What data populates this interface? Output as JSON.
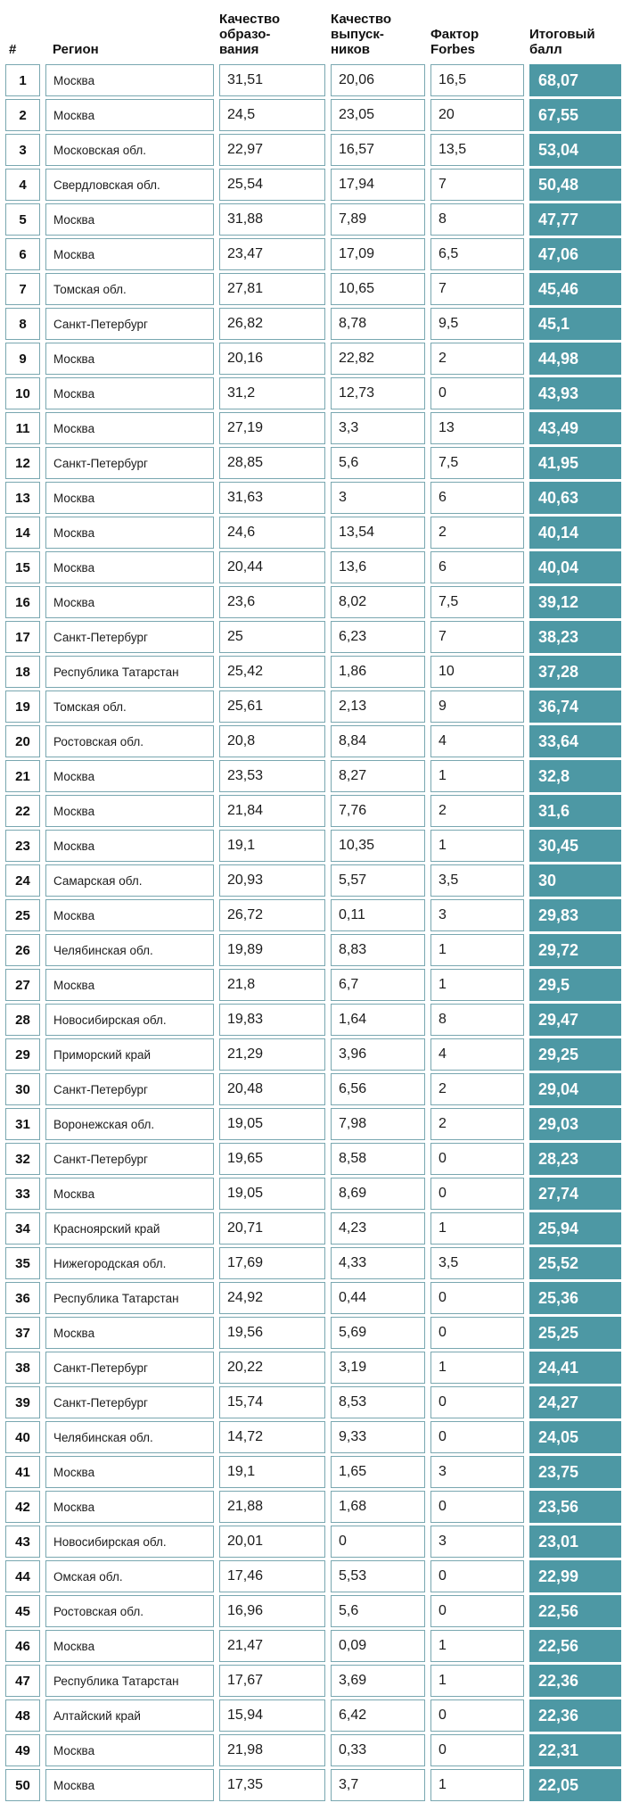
{
  "colors": {
    "accent_teal": "#4d98a4",
    "cell_border": "#79a7b0",
    "text": "#1c1c1c",
    "total_text": "#ffffff"
  },
  "chart_data": {
    "type": "table",
    "title": "",
    "columns": [
      "#",
      "Регион",
      "Качество\nобразо-\nвания",
      "Качество\nвыпуск-\nников",
      "Фактор\nForbes",
      "Итоговый\nбалл"
    ],
    "rows": [
      [
        "1",
        "Москва",
        "31,51",
        "20,06",
        "16,5",
        "68,07"
      ],
      [
        "2",
        "Москва",
        "24,5",
        "23,05",
        "20",
        "67,55"
      ],
      [
        "3",
        "Московская обл.",
        "22,97",
        "16,57",
        "13,5",
        "53,04"
      ],
      [
        "4",
        "Свердловская обл.",
        "25,54",
        "17,94",
        "7",
        "50,48"
      ],
      [
        "5",
        "Москва",
        "31,88",
        "7,89",
        "8",
        "47,77"
      ],
      [
        "6",
        "Москва",
        "23,47",
        "17,09",
        "6,5",
        "47,06"
      ],
      [
        "7",
        "Томская обл.",
        "27,81",
        "10,65",
        "7",
        "45,46"
      ],
      [
        "8",
        "Санкт-Петербург",
        "26,82",
        "8,78",
        "9,5",
        "45,1"
      ],
      [
        "9",
        "Москва",
        "20,16",
        "22,82",
        "2",
        "44,98"
      ],
      [
        "10",
        "Москва",
        "31,2",
        "12,73",
        "0",
        "43,93"
      ],
      [
        "11",
        "Москва",
        "27,19",
        "3,3",
        "13",
        "43,49"
      ],
      [
        "12",
        "Санкт-Петербург",
        "28,85",
        "5,6",
        "7,5",
        "41,95"
      ],
      [
        "13",
        "Москва",
        "31,63",
        "3",
        "6",
        "40,63"
      ],
      [
        "14",
        "Москва",
        "24,6",
        "13,54",
        "2",
        "40,14"
      ],
      [
        "15",
        "Москва",
        "20,44",
        "13,6",
        "6",
        "40,04"
      ],
      [
        "16",
        "Москва",
        "23,6",
        "8,02",
        "7,5",
        "39,12"
      ],
      [
        "17",
        "Санкт-Петербург",
        "25",
        "6,23",
        "7",
        "38,23"
      ],
      [
        "18",
        "Республика Татарстан",
        "25,42",
        "1,86",
        "10",
        "37,28"
      ],
      [
        "19",
        "Томская обл.",
        "25,61",
        "2,13",
        "9",
        "36,74"
      ],
      [
        "20",
        "Ростовская обл.",
        "20,8",
        "8,84",
        "4",
        "33,64"
      ],
      [
        "21",
        "Москва",
        "23,53",
        "8,27",
        "1",
        "32,8"
      ],
      [
        "22",
        "Москва",
        "21,84",
        "7,76",
        "2",
        "31,6"
      ],
      [
        "23",
        "Москва",
        "19,1",
        "10,35",
        "1",
        "30,45"
      ],
      [
        "24",
        "Самарская обл.",
        "20,93",
        "5,57",
        "3,5",
        "30"
      ],
      [
        "25",
        "Москва",
        "26,72",
        "0,11",
        "3",
        "29,83"
      ],
      [
        "26",
        "Челябинская обл.",
        "19,89",
        "8,83",
        "1",
        "29,72"
      ],
      [
        "27",
        "Москва",
        "21,8",
        "6,7",
        "1",
        "29,5"
      ],
      [
        "28",
        "Новосибирская обл.",
        "19,83",
        "1,64",
        "8",
        "29,47"
      ],
      [
        "29",
        "Приморский край",
        "21,29",
        "3,96",
        "4",
        "29,25"
      ],
      [
        "30",
        "Санкт-Петербург",
        "20,48",
        "6,56",
        "2",
        "29,04"
      ],
      [
        "31",
        "Воронежская обл.",
        "19,05",
        "7,98",
        "2",
        "29,03"
      ],
      [
        "32",
        "Санкт-Петербург",
        "19,65",
        "8,58",
        "0",
        "28,23"
      ],
      [
        "33",
        "Москва",
        "19,05",
        "8,69",
        "0",
        "27,74"
      ],
      [
        "34",
        "Красноярский край",
        "20,71",
        "4,23",
        "1",
        "25,94"
      ],
      [
        "35",
        "Нижегородская обл.",
        "17,69",
        "4,33",
        "3,5",
        "25,52"
      ],
      [
        "36",
        "Республика Татарстан",
        "24,92",
        "0,44",
        "0",
        "25,36"
      ],
      [
        "37",
        "Москва",
        "19,56",
        "5,69",
        "0",
        "25,25"
      ],
      [
        "38",
        "Санкт-Петербург",
        "20,22",
        "3,19",
        "1",
        "24,41"
      ],
      [
        "39",
        "Санкт-Петербург",
        "15,74",
        "8,53",
        "0",
        "24,27"
      ],
      [
        "40",
        "Челябинская обл.",
        "14,72",
        "9,33",
        "0",
        "24,05"
      ],
      [
        "41",
        "Москва",
        "19,1",
        "1,65",
        "3",
        "23,75"
      ],
      [
        "42",
        "Москва",
        "21,88",
        "1,68",
        "0",
        "23,56"
      ],
      [
        "43",
        "Новосибирская обл.",
        "20,01",
        "0",
        "3",
        "23,01"
      ],
      [
        "44",
        "Омская обл.",
        "17,46",
        "5,53",
        "0",
        "22,99"
      ],
      [
        "45",
        "Ростовская обл.",
        "16,96",
        "5,6",
        "0",
        "22,56"
      ],
      [
        "46",
        "Москва",
        "21,47",
        "0,09",
        "1",
        "22,56"
      ],
      [
        "47",
        "Республика Татарстан",
        "17,67",
        "3,69",
        "1",
        "22,36"
      ],
      [
        "48",
        "Алтайский край",
        "15,94",
        "6,42",
        "0",
        "22,36"
      ],
      [
        "49",
        "Москва",
        "21,98",
        "0,33",
        "0",
        "22,31"
      ],
      [
        "50",
        "Москва",
        "17,35",
        "3,7",
        "1",
        "22,05"
      ]
    ]
  }
}
